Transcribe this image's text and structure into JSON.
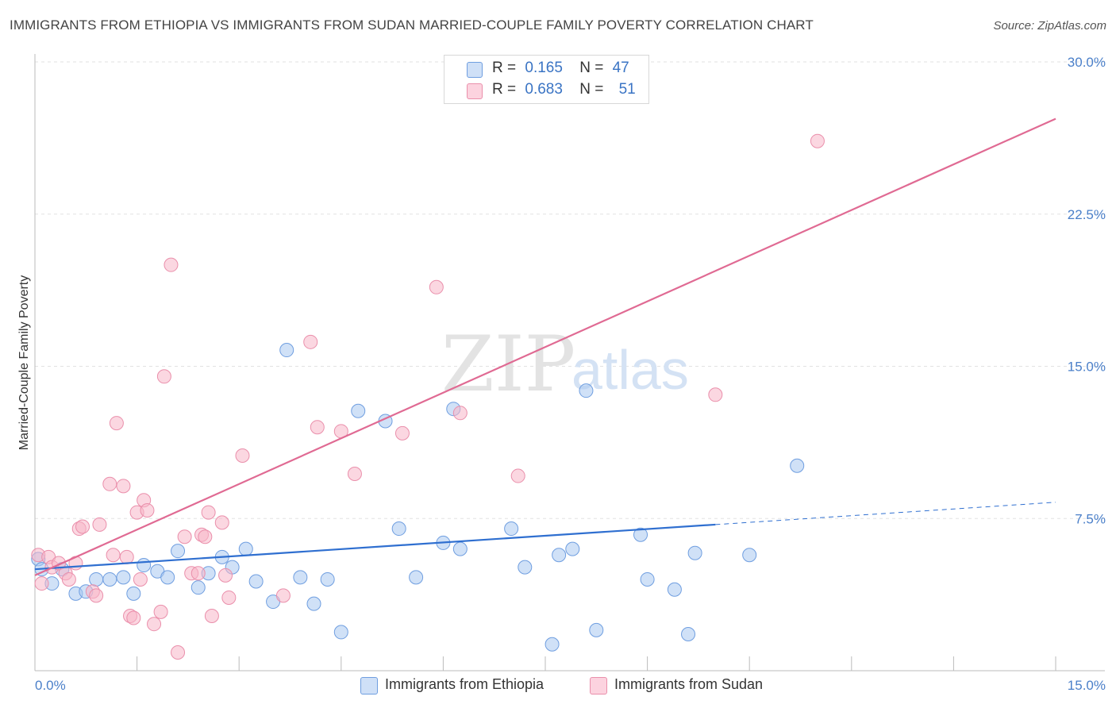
{
  "title": "IMMIGRANTS FROM ETHIOPIA VS IMMIGRANTS FROM SUDAN MARRIED-COUPLE FAMILY POVERTY CORRELATION CHART",
  "source": "Source: ZipAtlas.com",
  "watermark": {
    "zip": "ZIP",
    "atlas": "atlas"
  },
  "legend": {
    "rows": [
      {
        "r_label": "R =",
        "r_value": "0.165",
        "n_label": "N =",
        "n_value": "47",
        "color": "#a9c8f0"
      },
      {
        "r_label": "R =",
        "r_value": "0.683",
        "n_label": "N =",
        "n_value": "51",
        "color": "#f7b6c9"
      }
    ]
  },
  "bottom_legend": [
    {
      "label": "Immigrants from Ethiopia",
      "color": "#a9c8f0"
    },
    {
      "label": "Immigrants from Sudan",
      "color": "#f7b6c9"
    }
  ],
  "chart_data": {
    "type": "scatter",
    "title": "IMMIGRANTS FROM ETHIOPIA VS IMMIGRANTS FROM SUDAN MARRIED-COUPLE FAMILY POVERTY CORRELATION CHART",
    "xlabel": "",
    "ylabel": "Married-Couple Family Poverty",
    "xlim": [
      0,
      15
    ],
    "ylim": [
      0,
      30
    ],
    "x_tick_labels": [
      "0.0%",
      "15.0%"
    ],
    "y_ticks": [
      7.5,
      15.0,
      22.5,
      30.0
    ],
    "y_tick_labels": [
      "7.5%",
      "15.0%",
      "22.5%",
      "30.0%"
    ],
    "grid": true,
    "series": [
      {
        "name": "Immigrants from Ethiopia",
        "color": "#a9c8f0",
        "stroke": "#6f9ee0",
        "trend_color": "#2f6fd0",
        "trend": {
          "x0": 0.0,
          "y0": 5.0,
          "x1": 10.0,
          "y1": 7.2,
          "dash_to_x": 15.0,
          "dash_to_y": 8.3
        },
        "points": [
          {
            "x": 0.05,
            "y": 5.5
          },
          {
            "x": 0.1,
            "y": 5.0
          },
          {
            "x": 0.25,
            "y": 4.3
          },
          {
            "x": 0.4,
            "y": 5.0
          },
          {
            "x": 0.6,
            "y": 3.8
          },
          {
            "x": 0.75,
            "y": 3.9
          },
          {
            "x": 0.9,
            "y": 4.5
          },
          {
            "x": 1.1,
            "y": 4.5
          },
          {
            "x": 1.3,
            "y": 4.6
          },
          {
            "x": 1.45,
            "y": 3.8
          },
          {
            "x": 1.6,
            "y": 5.2
          },
          {
            "x": 1.8,
            "y": 4.9
          },
          {
            "x": 1.95,
            "y": 4.6
          },
          {
            "x": 2.1,
            "y": 5.9
          },
          {
            "x": 2.4,
            "y": 4.1
          },
          {
            "x": 2.55,
            "y": 4.8
          },
          {
            "x": 2.75,
            "y": 5.6
          },
          {
            "x": 2.9,
            "y": 5.1
          },
          {
            "x": 3.1,
            "y": 6.0
          },
          {
            "x": 3.25,
            "y": 4.4
          },
          {
            "x": 3.5,
            "y": 3.4
          },
          {
            "x": 3.7,
            "y": 15.8
          },
          {
            "x": 3.9,
            "y": 4.6
          },
          {
            "x": 4.1,
            "y": 3.3
          },
          {
            "x": 4.3,
            "y": 4.5
          },
          {
            "x": 4.5,
            "y": 1.9
          },
          {
            "x": 4.75,
            "y": 12.8
          },
          {
            "x": 5.15,
            "y": 12.3
          },
          {
            "x": 5.35,
            "y": 7.0
          },
          {
            "x": 5.6,
            "y": 4.6
          },
          {
            "x": 6.0,
            "y": 6.3
          },
          {
            "x": 6.15,
            "y": 12.9
          },
          {
            "x": 6.25,
            "y": 6.0
          },
          {
            "x": 7.0,
            "y": 7.0
          },
          {
            "x": 7.2,
            "y": 5.1
          },
          {
            "x": 7.6,
            "y": 1.3
          },
          {
            "x": 7.7,
            "y": 5.7
          },
          {
            "x": 7.9,
            "y": 6.0
          },
          {
            "x": 8.1,
            "y": 13.8
          },
          {
            "x": 8.25,
            "y": 2.0
          },
          {
            "x": 8.9,
            "y": 6.7
          },
          {
            "x": 9.0,
            "y": 4.5
          },
          {
            "x": 9.4,
            "y": 4.0
          },
          {
            "x": 9.6,
            "y": 1.8
          },
          {
            "x": 9.7,
            "y": 5.8
          },
          {
            "x": 10.5,
            "y": 5.7
          },
          {
            "x": 11.2,
            "y": 10.1
          }
        ]
      },
      {
        "name": "Immigrants from Sudan",
        "color": "#f7b6c9",
        "stroke": "#ea8fab",
        "trend_color": "#e06a93",
        "trend": {
          "x0": 0.0,
          "y0": 4.7,
          "x1": 15.0,
          "y1": 27.2
        },
        "points": [
          {
            "x": 0.05,
            "y": 5.7
          },
          {
            "x": 0.1,
            "y": 4.3
          },
          {
            "x": 0.2,
            "y": 5.6
          },
          {
            "x": 0.25,
            "y": 5.1
          },
          {
            "x": 0.35,
            "y": 5.3
          },
          {
            "x": 0.45,
            "y": 4.8
          },
          {
            "x": 0.5,
            "y": 4.5
          },
          {
            "x": 0.6,
            "y": 5.3
          },
          {
            "x": 0.65,
            "y": 7.0
          },
          {
            "x": 0.7,
            "y": 7.1
          },
          {
            "x": 0.85,
            "y": 3.9
          },
          {
            "x": 0.9,
            "y": 3.7
          },
          {
            "x": 0.95,
            "y": 7.2
          },
          {
            "x": 1.1,
            "y": 9.2
          },
          {
            "x": 1.15,
            "y": 5.7
          },
          {
            "x": 1.2,
            "y": 12.2
          },
          {
            "x": 1.3,
            "y": 9.1
          },
          {
            "x": 1.35,
            "y": 5.6
          },
          {
            "x": 1.4,
            "y": 2.7
          },
          {
            "x": 1.45,
            "y": 2.6
          },
          {
            "x": 1.5,
            "y": 7.8
          },
          {
            "x": 1.55,
            "y": 4.5
          },
          {
            "x": 1.6,
            "y": 8.4
          },
          {
            "x": 1.65,
            "y": 7.9
          },
          {
            "x": 1.75,
            "y": 2.3
          },
          {
            "x": 1.85,
            "y": 2.9
          },
          {
            "x": 1.9,
            "y": 14.5
          },
          {
            "x": 2.0,
            "y": 20.0
          },
          {
            "x": 2.1,
            "y": 0.9
          },
          {
            "x": 2.2,
            "y": 6.6
          },
          {
            "x": 2.3,
            "y": 4.8
          },
          {
            "x": 2.4,
            "y": 4.8
          },
          {
            "x": 2.45,
            "y": 6.7
          },
          {
            "x": 2.5,
            "y": 6.6
          },
          {
            "x": 2.55,
            "y": 7.8
          },
          {
            "x": 2.6,
            "y": 2.7
          },
          {
            "x": 2.75,
            "y": 7.3
          },
          {
            "x": 2.8,
            "y": 4.7
          },
          {
            "x": 2.85,
            "y": 3.6
          },
          {
            "x": 3.05,
            "y": 10.6
          },
          {
            "x": 3.65,
            "y": 3.7
          },
          {
            "x": 4.05,
            "y": 16.2
          },
          {
            "x": 4.15,
            "y": 12.0
          },
          {
            "x": 4.5,
            "y": 11.8
          },
          {
            "x": 4.7,
            "y": 9.7
          },
          {
            "x": 5.4,
            "y": 11.7
          },
          {
            "x": 5.9,
            "y": 18.9
          },
          {
            "x": 6.25,
            "y": 12.7
          },
          {
            "x": 7.1,
            "y": 9.6
          },
          {
            "x": 10.0,
            "y": 13.6
          },
          {
            "x": 11.5,
            "y": 26.1
          }
        ]
      }
    ]
  }
}
